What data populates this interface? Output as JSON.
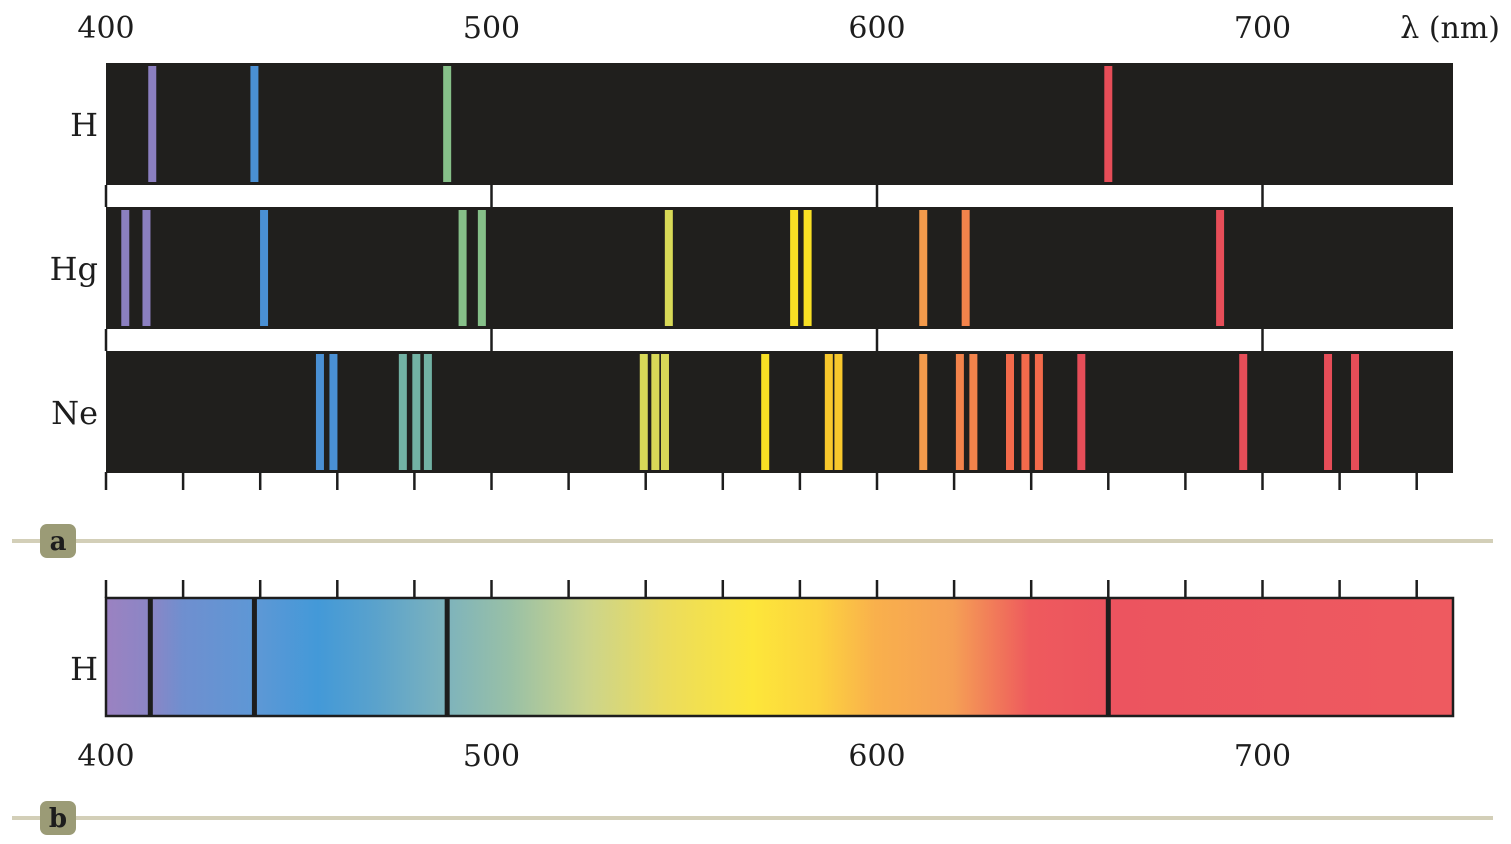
{
  "chart_data": {
    "type": "spectral_lines",
    "unit_label": "λ (nm)",
    "x_range": [
      400,
      750
    ],
    "tick_labels": [
      "400",
      "500",
      "600",
      "700"
    ],
    "tick_values": [
      400,
      500,
      600,
      700
    ],
    "minor_tick_step": 20,
    "panel_a": {
      "letter": "a",
      "spectra": [
        {
          "element": "H",
          "lines": [
            {
              "wavelength": 412,
              "color": "#8b7fc0"
            },
            {
              "wavelength": 438.5,
              "color": "#4a90d4"
            },
            {
              "wavelength": 488.5,
              "color": "#86c089"
            },
            {
              "wavelength": 660,
              "color": "#e64d58"
            }
          ]
        },
        {
          "element": "Hg",
          "lines": [
            {
              "wavelength": 405,
              "color": "#8b7fc0"
            },
            {
              "wavelength": 410.5,
              "color": "#8b7fc0"
            },
            {
              "wavelength": 441,
              "color": "#4a90d4"
            },
            {
              "wavelength": 492.5,
              "color": "#86c089"
            },
            {
              "wavelength": 497.5,
              "color": "#86c089"
            },
            {
              "wavelength": 546,
              "color": "#d8d957"
            },
            {
              "wavelength": 578.5,
              "color": "#f8e024"
            },
            {
              "wavelength": 582,
              "color": "#f8e024"
            },
            {
              "wavelength": 612,
              "color": "#f39a4b"
            },
            {
              "wavelength": 623,
              "color": "#f3834b"
            },
            {
              "wavelength": 689,
              "color": "#e64d58"
            }
          ]
        },
        {
          "element": "Ne",
          "lines": [
            {
              "wavelength": 455.5,
              "color": "#4a90d4"
            },
            {
              "wavelength": 459,
              "color": "#4a90d4"
            },
            {
              "wavelength": 477,
              "color": "#72b2a4"
            },
            {
              "wavelength": 480.5,
              "color": "#72b2a4"
            },
            {
              "wavelength": 483.5,
              "color": "#72b2a4"
            },
            {
              "wavelength": 539.5,
              "color": "#d8d957"
            },
            {
              "wavelength": 542.5,
              "color": "#d8d957"
            },
            {
              "wavelength": 545,
              "color": "#d8d957"
            },
            {
              "wavelength": 571,
              "color": "#f8e024"
            },
            {
              "wavelength": 587.5,
              "color": "#f8c82c"
            },
            {
              "wavelength": 590,
              "color": "#f8c82c"
            },
            {
              "wavelength": 612,
              "color": "#f39a4b"
            },
            {
              "wavelength": 621.5,
              "color": "#f3834b"
            },
            {
              "wavelength": 625,
              "color": "#f3834b"
            },
            {
              "wavelength": 634.5,
              "color": "#f36a4b"
            },
            {
              "wavelength": 638.5,
              "color": "#f36a4b"
            },
            {
              "wavelength": 642,
              "color": "#f36a4b"
            },
            {
              "wavelength": 653,
              "color": "#e64d58"
            },
            {
              "wavelength": 695,
              "color": "#e64d58"
            },
            {
              "wavelength": 717,
              "color": "#e64d58"
            },
            {
              "wavelength": 724,
              "color": "#e64d58"
            }
          ]
        }
      ]
    },
    "panel_b": {
      "letter": "b",
      "element": "H",
      "absorption_lines": [
        411.5,
        438.5,
        488.5,
        660
      ],
      "gradient_stops": [
        {
          "wavelength": 400,
          "color": "#9b82c1"
        },
        {
          "wavelength": 412,
          "color": "#8a86c6"
        },
        {
          "wavelength": 420,
          "color": "#6f8fcf"
        },
        {
          "wavelength": 440,
          "color": "#5c98d6"
        },
        {
          "wavelength": 455,
          "color": "#4399d8"
        },
        {
          "wavelength": 470,
          "color": "#5aa2cc"
        },
        {
          "wavelength": 488,
          "color": "#7db3bd"
        },
        {
          "wavelength": 505,
          "color": "#99c0a6"
        },
        {
          "wavelength": 525,
          "color": "#cbd48c"
        },
        {
          "wavelength": 545,
          "color": "#ebdc5e"
        },
        {
          "wavelength": 568,
          "color": "#fde63a"
        },
        {
          "wavelength": 585,
          "color": "#fcd33f"
        },
        {
          "wavelength": 600,
          "color": "#f9b04c"
        },
        {
          "wavelength": 620,
          "color": "#f5a055"
        },
        {
          "wavelength": 640,
          "color": "#ee5a5d"
        },
        {
          "wavelength": 660,
          "color": "#ec545f"
        },
        {
          "wavelength": 750,
          "color": "#ee5a60"
        }
      ]
    },
    "colors": {
      "band": "#201f1d",
      "rule": "#d3cfb8",
      "badge": "#9b9b76",
      "ink": "#1d1d1d"
    }
  }
}
